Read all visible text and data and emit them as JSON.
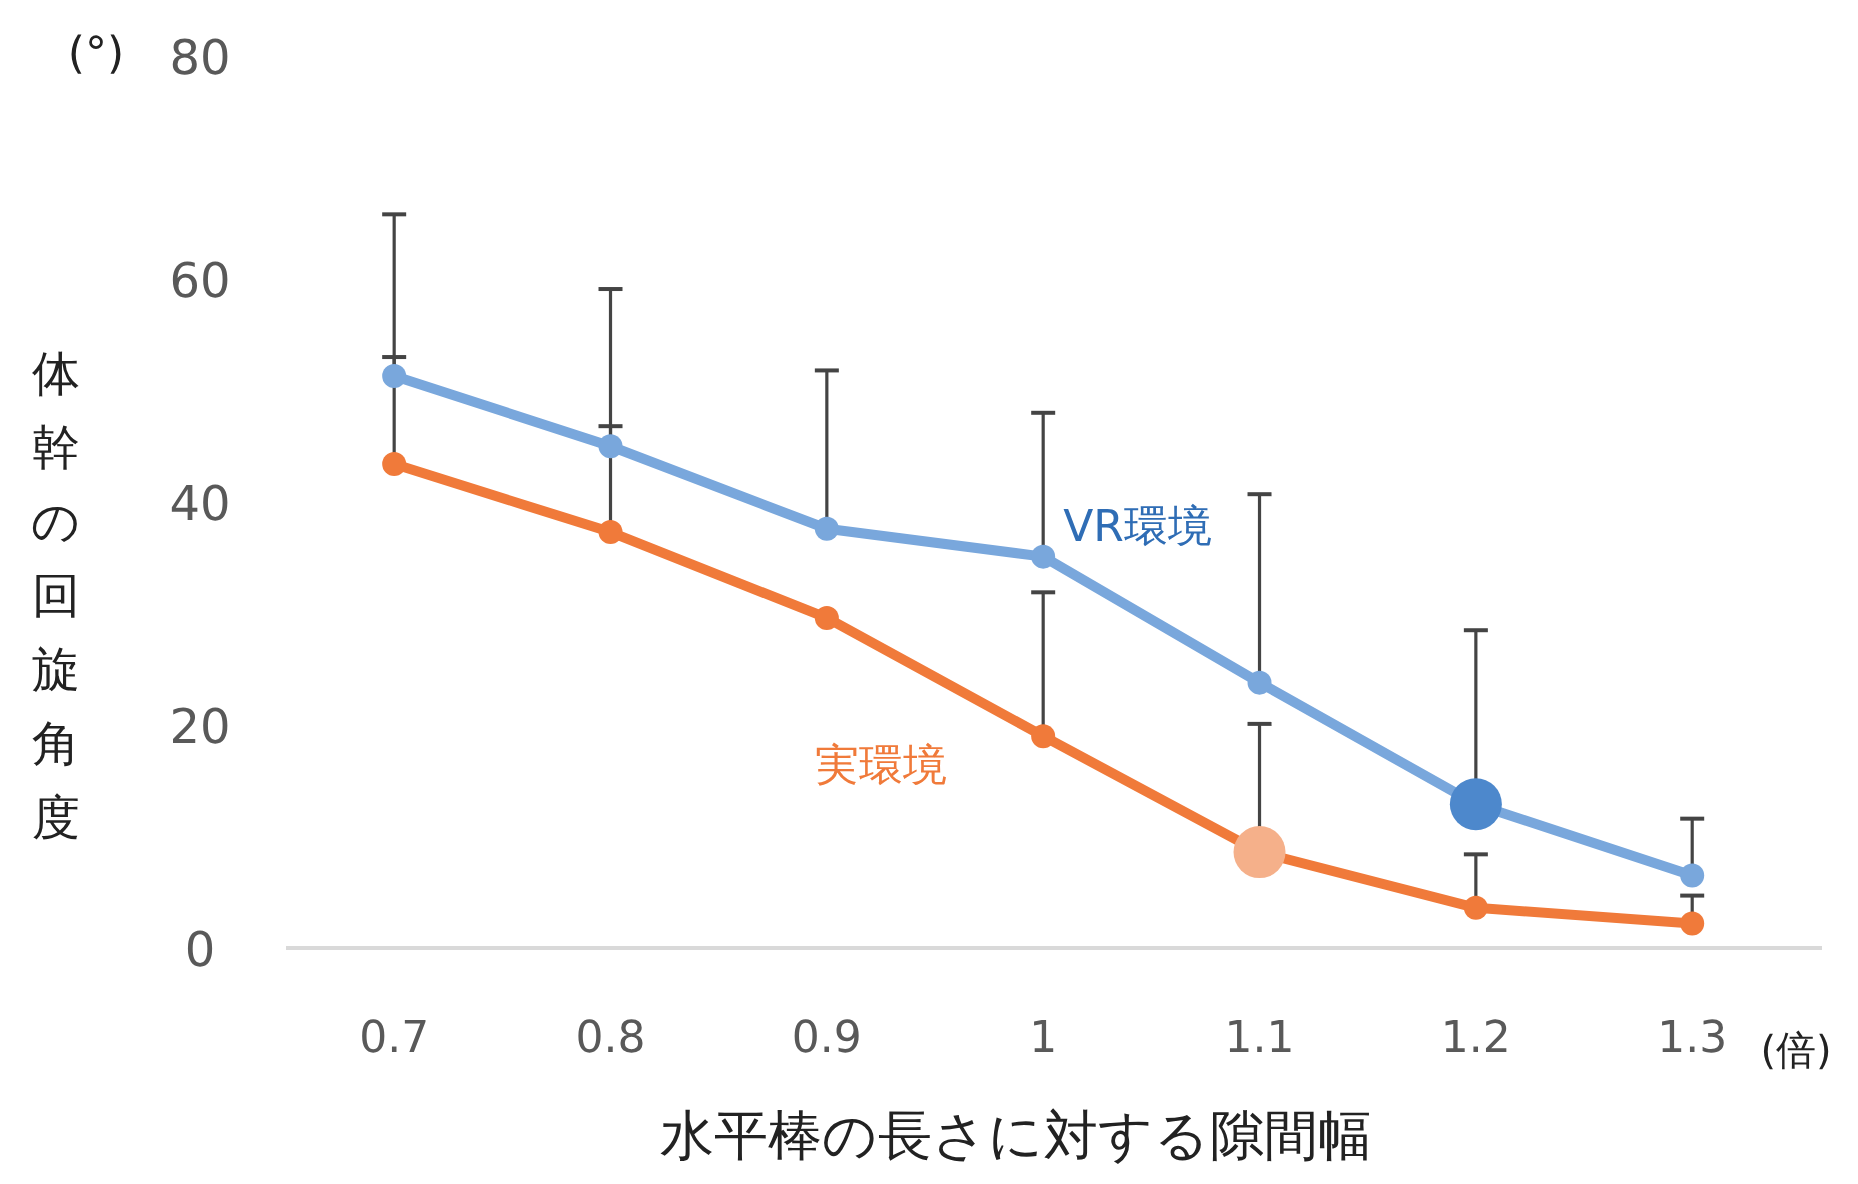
{
  "chart_data": {
    "type": "line",
    "xlabel": "水平棒の長さに対する隙間幅",
    "ylabel": "体幹の回旋角度",
    "annotations": [
      "(°)",
      "(倍)"
    ],
    "x": [
      0.7,
      0.8,
      0.9,
      1,
      1.1,
      1.2,
      1.3
    ],
    "xlim": [
      0.65,
      1.36
    ],
    "xticks": [
      0.7,
      0.8,
      0.9,
      1,
      1.1,
      1.2,
      1.3
    ],
    "ylim": [
      0,
      80
    ],
    "yticks": [
      0,
      20,
      40,
      60,
      80
    ],
    "grid": false,
    "marker": "circle",
    "line_style": "solid",
    "series": [
      {
        "name": "VR環境",
        "color": "#79a7dc",
        "values": [
          51.3,
          45.0,
          37.6,
          35.1,
          23.8,
          12.9,
          6.5
        ],
        "colors": [
          "#79a7dc",
          "#79a7dc",
          "#79a7dc",
          "#79a7dc",
          "#79a7dc",
          "#4d88cc",
          "#79a7dc"
        ],
        "errors": [
          [
            51.3,
            65.8
          ],
          [
            45.0,
            59.1
          ],
          [
            37.6,
            51.8
          ],
          [
            35.1,
            48.0
          ],
          [
            23.8,
            40.7
          ],
          [
            12.9,
            28.5
          ],
          [
            6.5,
            11.6
          ]
        ]
      },
      {
        "name": "実環境",
        "color": "#f07a3a",
        "values": [
          43.4,
          37.3,
          29.6,
          19.0,
          8.6,
          3.6,
          2.2
        ],
        "colors": [
          "#f07a3a",
          "#f07a3a",
          "#f07a3a",
          "#f07a3a",
          "#f5b08a",
          "#f07a3a",
          "#f07a3a"
        ],
        "errors": [
          [
            43.4,
            53.0
          ],
          [
            37.3,
            46.8
          ],
          null,
          [
            19.0,
            31.9
          ],
          [
            8.6,
            20.1
          ],
          [
            3.6,
            8.4
          ],
          [
            2.2,
            4.7
          ]
        ]
      }
    ]
  }
}
